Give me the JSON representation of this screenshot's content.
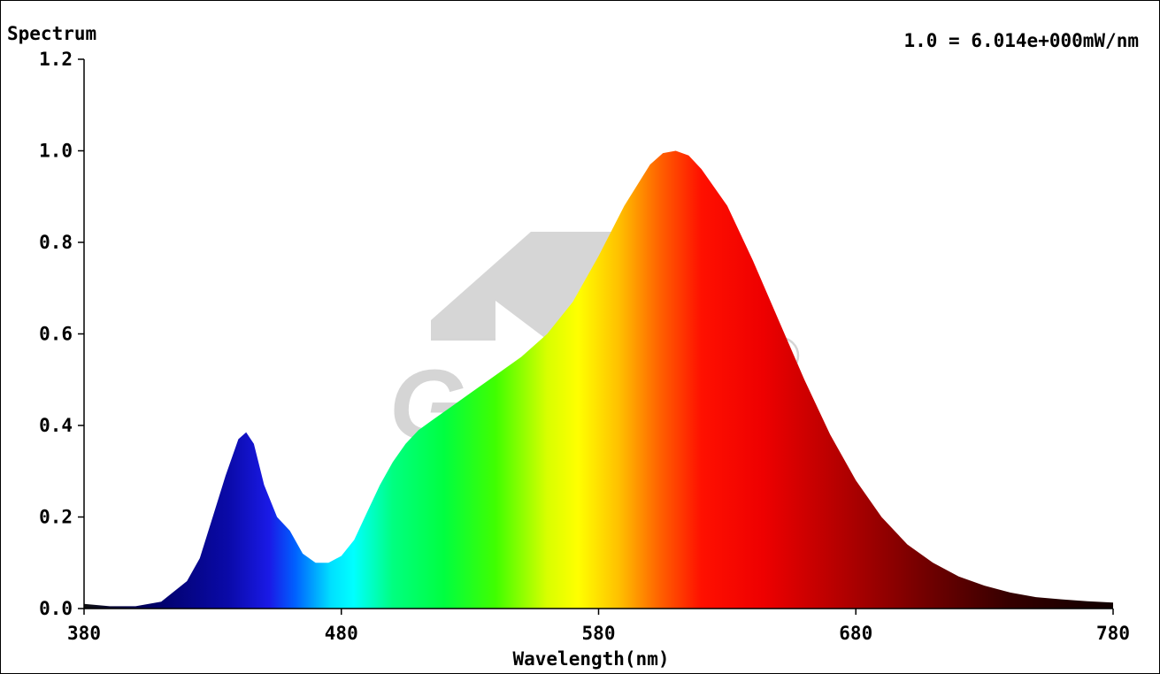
{
  "chart_data": {
    "type": "area",
    "title": "Spectrum",
    "annotation": "1.0 = 6.014e+000mW/nm",
    "xlabel": "Wavelength(nm)",
    "ylabel": "",
    "xlim": [
      380,
      780
    ],
    "ylim": [
      0,
      1.2
    ],
    "x_ticks": [
      380,
      480,
      580,
      680,
      780
    ],
    "x_tick_labels": [
      "380",
      "480",
      "580",
      "680",
      "780"
    ],
    "y_ticks": [
      0,
      0.2,
      0.4,
      0.6,
      0.8,
      1.0,
      1.2
    ],
    "y_tick_labels": [
      "0.0",
      "0.2",
      "0.4",
      "0.6",
      "0.8",
      "1.0",
      "1.2"
    ],
    "grid": false,
    "fill": "visible-spectrum-gradient",
    "watermark": "Gumax",
    "series": [
      {
        "x": [
          380,
          390,
          400,
          410,
          420,
          425,
          430,
          435,
          440,
          443,
          446,
          450,
          455,
          460,
          465,
          470,
          475,
          480,
          485,
          490,
          495,
          500,
          505,
          510,
          515,
          520,
          530,
          540,
          550,
          560,
          570,
          580,
          590,
          600,
          605,
          610,
          615,
          620,
          630,
          640,
          650,
          660,
          670,
          680,
          690,
          700,
          710,
          720,
          730,
          740,
          750,
          760,
          770,
          780
        ],
        "y": [
          0.01,
          0.005,
          0.005,
          0.015,
          0.06,
          0.11,
          0.2,
          0.29,
          0.37,
          0.385,
          0.36,
          0.27,
          0.2,
          0.17,
          0.12,
          0.1,
          0.1,
          0.115,
          0.15,
          0.21,
          0.27,
          0.32,
          0.36,
          0.39,
          0.41,
          0.43,
          0.47,
          0.51,
          0.55,
          0.6,
          0.67,
          0.77,
          0.88,
          0.97,
          0.995,
          1.0,
          0.99,
          0.96,
          0.88,
          0.76,
          0.63,
          0.5,
          0.38,
          0.28,
          0.2,
          0.14,
          0.1,
          0.07,
          0.05,
          0.035,
          0.025,
          0.02,
          0.016,
          0.013
        ]
      }
    ]
  }
}
